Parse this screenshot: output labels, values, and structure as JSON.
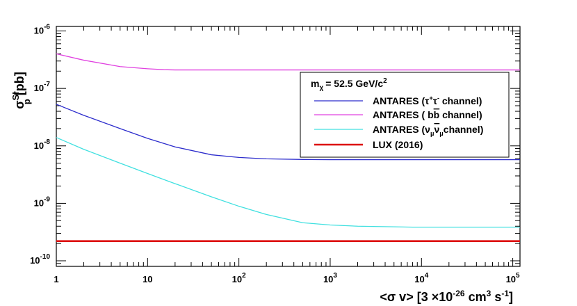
{
  "chart_data": {
    "type": "line",
    "title": "",
    "xscale": "log",
    "yscale": "log",
    "xlim": [
      1,
      120000
    ],
    "ylim": [
      8e-11,
      1.2e-06
    ],
    "x_ticks": [
      {
        "value": 1,
        "base": "1",
        "exp": ""
      },
      {
        "value": 10,
        "base": "10",
        "exp": ""
      },
      {
        "value": 100,
        "base": "10",
        "exp": "2"
      },
      {
        "value": 1000,
        "base": "10",
        "exp": "3"
      },
      {
        "value": 10000,
        "base": "10",
        "exp": "4"
      },
      {
        "value": 100000,
        "base": "10",
        "exp": "5"
      }
    ],
    "y_ticks": [
      {
        "value": 1e-10,
        "base": "10",
        "exp": "-10"
      },
      {
        "value": 1e-09,
        "base": "10",
        "exp": "-9"
      },
      {
        "value": 1e-08,
        "base": "10",
        "exp": "-8"
      },
      {
        "value": 1e-07,
        "base": "10",
        "exp": "-7"
      },
      {
        "value": 1e-06,
        "base": "10",
        "exp": "-6"
      }
    ],
    "xlabel": {
      "pre": "<σ v> [3 ×10",
      "exp1": "-26",
      "mid": " cm",
      "exp2": "3",
      "mid2": " s",
      "exp3": "-1",
      "post": "]"
    },
    "ylabel": {
      "main": "σ",
      "sup": "SI",
      "sub": "p",
      "post": " [pb]"
    },
    "legend": {
      "header": {
        "main": "m",
        "sub": "χ",
        "text": "= 52.5 GeV/c",
        "sup": "2"
      }
    },
    "series": [
      {
        "name": "ANTARES (τ⁺τ⁻ channel)",
        "label_parts": {
          "pre": "ANTARES (τ",
          "sup1": "+",
          "mid": "τ",
          "sup2": "-",
          "post": " channel)"
        },
        "color": "#2c2ccc",
        "width": 1.3,
        "x": [
          1,
          2,
          5,
          10,
          20,
          50,
          100,
          200,
          500,
          1000,
          10000,
          120000
        ],
        "y": [
          5.3e-08,
          3.4e-08,
          2e-08,
          1.35e-08,
          9.6e-09,
          7e-09,
          6.3e-09,
          5.95e-09,
          5.8e-09,
          5.75e-09,
          5.75e-09,
          5.75e-09
        ]
      },
      {
        "name": "ANTARES ( bb̄ channel)",
        "label_parts": {
          "pre": "ANTARES ( b",
          "bar": "b",
          "post": " channel)"
        },
        "color": "#e040e0",
        "width": 1.3,
        "x": [
          1,
          2,
          5,
          10,
          15,
          20,
          50,
          100,
          1000,
          10000,
          120000
        ],
        "y": [
          4e-07,
          3.1e-07,
          2.4e-07,
          2.2e-07,
          2.12e-07,
          2.1e-07,
          2.1e-07,
          2.1e-07,
          2.1e-07,
          2.1e-07,
          2.1e-07
        ]
      },
      {
        "name": "ANTARES (ν_μ ν̄_μ channel)",
        "label_parts": {
          "pre": "ANTARES (ν",
          "sub1": "μ",
          "bar": "ν",
          "sub2": "μ",
          "post": "channel)"
        },
        "color": "#40e0e0",
        "width": 1.3,
        "x": [
          1,
          2,
          5,
          10,
          20,
          50,
          100,
          200,
          500,
          1000,
          2000,
          5000,
          8000,
          10000,
          120000
        ],
        "y": [
          1.4e-08,
          8.7e-09,
          5e-09,
          3.3e-09,
          2.2e-09,
          1.3e-09,
          8.9e-10,
          6.4e-10,
          4.6e-10,
          4.2e-10,
          4e-10,
          3.9e-10,
          3.85e-10,
          3.85e-10,
          3.85e-10
        ]
      },
      {
        "name": "LUX (2016)",
        "label_parts": {
          "pre": "LUX (2016)"
        },
        "color": "#dd1111",
        "width": 2.6,
        "x": [
          1,
          120000
        ],
        "y": [
          2.2e-10,
          2.2e-10
        ]
      }
    ]
  }
}
